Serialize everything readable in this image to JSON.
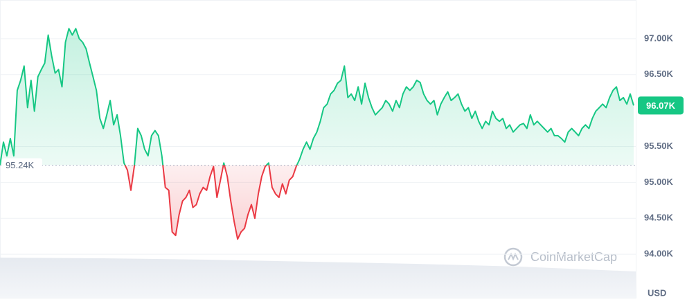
{
  "chart_data": {
    "type": "line",
    "values": [
      95240,
      95560,
      95370,
      95610,
      95370,
      96280,
      96420,
      96620,
      96040,
      96420,
      95990,
      96470,
      96570,
      96660,
      97050,
      96760,
      96520,
      96570,
      96330,
      96950,
      97140,
      97050,
      97140,
      97000,
      96950,
      96860,
      96660,
      96470,
      96280,
      95890,
      95750,
      95940,
      96140,
      95800,
      95940,
      95650,
      95270,
      95170,
      94890,
      95220,
      95750,
      95650,
      95460,
      95370,
      95650,
      95720,
      95650,
      95370,
      94930,
      94890,
      94310,
      94260,
      94550,
      94740,
      94790,
      94890,
      94650,
      94690,
      94840,
      94930,
      94890,
      95080,
      95220,
      94790,
      95030,
      95270,
      95080,
      94740,
      94450,
      94210,
      94310,
      94360,
      94550,
      94690,
      94500,
      94840,
      95080,
      95220,
      95270,
      94930,
      94840,
      94790,
      94980,
      94840,
      95030,
      95080,
      95220,
      95320,
      95460,
      95560,
      95460,
      95610,
      95700,
      95850,
      96040,
      96090,
      96230,
      96280,
      96380,
      96420,
      96620,
      96180,
      96230,
      96140,
      96330,
      96090,
      96380,
      96180,
      96040,
      95940,
      95990,
      96040,
      96140,
      96090,
      95990,
      96140,
      96040,
      96230,
      96330,
      96280,
      96330,
      96420,
      96390,
      96230,
      96140,
      96090,
      96140,
      95940,
      96090,
      96180,
      96260,
      96140,
      96180,
      96230,
      96090,
      95990,
      96040,
      95890,
      95990,
      95850,
      95750,
      95850,
      95800,
      95990,
      95890,
      95850,
      95890,
      95750,
      95800,
      95700,
      95750,
      95800,
      95820,
      95750,
      95940,
      95800,
      95850,
      95800,
      95750,
      95700,
      95750,
      95650,
      95650,
      95610,
      95560,
      95700,
      95750,
      95700,
      95650,
      95750,
      95800,
      95750,
      95890,
      95990,
      96040,
      96090,
      96040,
      96180,
      96280,
      96330,
      96140,
      96180,
      96090,
      96230,
      96070
    ],
    "baseline": {
      "value": 95240,
      "label": "95.24K"
    },
    "current": {
      "value": 96070,
      "label": "96.07K"
    },
    "up_color": "#16c784",
    "down_color": "#ea3943",
    "ylim": [
      93490,
      97490
    ],
    "yticks": [
      {
        "value": 94000,
        "label": "94.00K"
      },
      {
        "value": 94500,
        "label": "94.50K"
      },
      {
        "value": 95000,
        "label": "95.00K"
      },
      {
        "value": 95500,
        "label": "95.50K"
      },
      {
        "value": 96500,
        "label": "96.50K"
      },
      {
        "value": 97000,
        "label": "97.00K"
      }
    ],
    "grid": true,
    "unit": "USD",
    "watermark": "CoinMarketCap"
  }
}
